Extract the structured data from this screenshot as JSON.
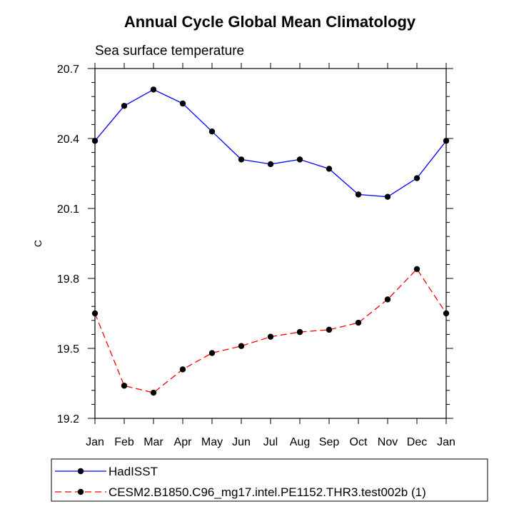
{
  "chart_data": {
    "type": "line",
    "title": "Annual Cycle Global Mean Climatology",
    "subtitle": "Sea surface temperature",
    "xlabel": "",
    "ylabel": "C",
    "categories": [
      "Jan",
      "Feb",
      "Mar",
      "Apr",
      "May",
      "Jun",
      "Jul",
      "Aug",
      "Sep",
      "Oct",
      "Nov",
      "Dec",
      "Jan"
    ],
    "ylim": [
      19.2,
      20.7
    ],
    "yticks": [
      "19.2",
      "19.5",
      "19.8",
      "20.1",
      "20.4",
      "20.7"
    ],
    "grid": false,
    "legend_position": "bottom",
    "series": [
      {
        "name": "HadISST",
        "color": "#0000ff",
        "dash": "solid",
        "values": [
          20.39,
          20.54,
          20.61,
          20.55,
          20.43,
          20.31,
          20.29,
          20.31,
          20.27,
          20.16,
          20.15,
          20.23,
          20.39
        ]
      },
      {
        "name": "CESM2.B1850.C96_mg17.intel.PE1152.THR3.test002b (1)",
        "color": "#ff0000",
        "dash": "dashed",
        "values": [
          19.65,
          19.34,
          19.31,
          19.41,
          19.48,
          19.51,
          19.55,
          19.57,
          19.58,
          19.61,
          19.71,
          19.84,
          19.65
        ]
      }
    ]
  }
}
